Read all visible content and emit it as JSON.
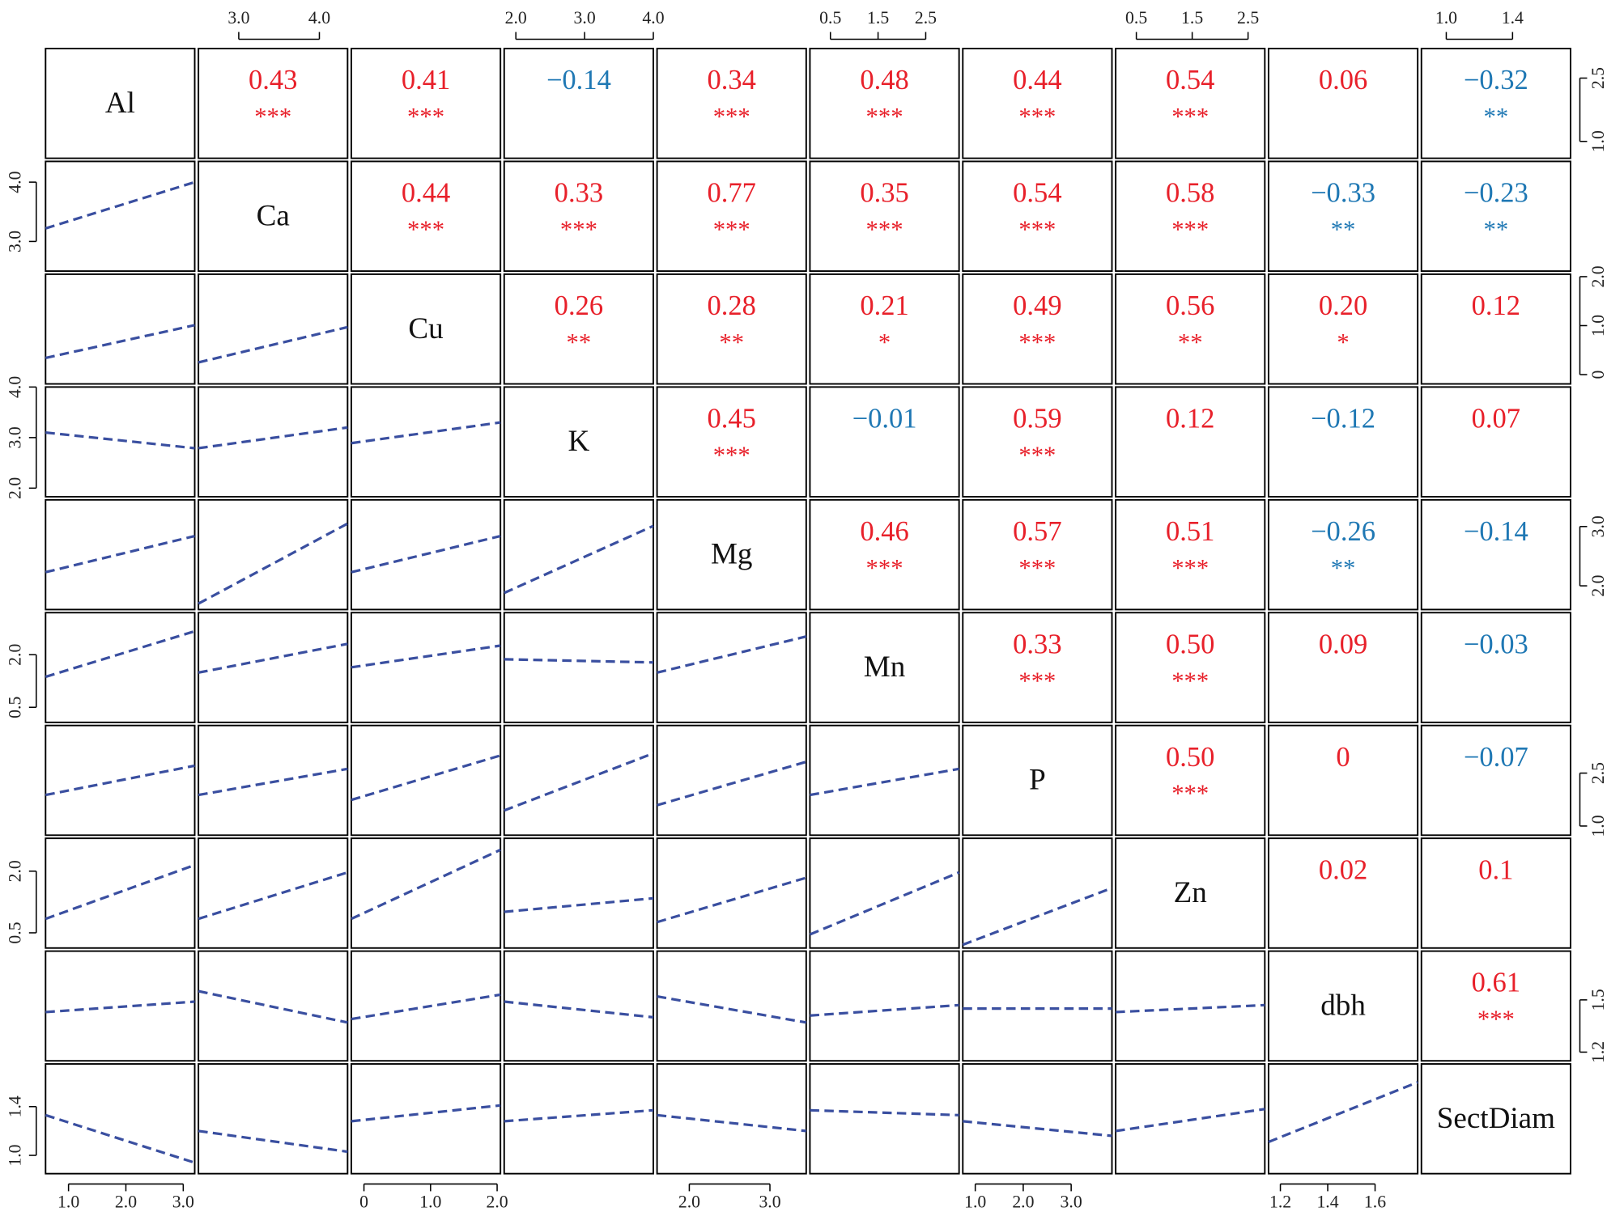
{
  "chart_data": {
    "type": "scatter-matrix",
    "pos_color": "#e8202a",
    "neg_color": "#1f78b4",
    "fit_color": "#3a4fa0",
    "variables": [
      {
        "name": "Al",
        "lim": [
          0.6,
          3.2
        ],
        "xticks": [
          {
            "value": 1,
            "label": "1.0"
          },
          {
            "value": 2,
            "label": "2.0"
          },
          {
            "value": 3,
            "label": "3.0"
          }
        ],
        "yticks": [
          {
            "value": 1,
            "label": "1.0"
          },
          {
            "value": 2.5,
            "label": "2.5"
          }
        ]
      },
      {
        "name": "Ca",
        "lim": [
          2.5,
          4.35
        ],
        "xticks": [
          {
            "value": 3,
            "label": "3.0"
          },
          {
            "value": 4,
            "label": "4.0"
          }
        ],
        "yticks": [
          {
            "value": 3,
            "label": "3.0"
          },
          {
            "value": 4,
            "label": "4.0"
          }
        ]
      },
      {
        "name": "Cu",
        "lim": [
          -0.19,
          2.05
        ],
        "xticks": [
          0,
          {
            "value": 1,
            "label": "1.0"
          },
          {
            "value": 2,
            "label": "2.0"
          }
        ],
        "yticks": [
          0,
          {
            "value": 1,
            "label": "1.0"
          },
          {
            "value": 2,
            "label": "2.0"
          }
        ]
      },
      {
        "name": "K",
        "lim": [
          1.83,
          4.0
        ],
        "xticks": [
          {
            "value": 2,
            "label": "2.0"
          },
          {
            "value": 3,
            "label": "3.0"
          },
          {
            "value": 4,
            "label": "4.0"
          }
        ],
        "yticks": [
          {
            "value": 2,
            "label": "2.0"
          },
          {
            "value": 3,
            "label": "3.0"
          },
          {
            "value": 4,
            "label": "4.0"
          }
        ]
      },
      {
        "name": "Mg",
        "lim": [
          1.6,
          3.45
        ],
        "xticks": [
          {
            "value": 2,
            "label": "2.0"
          },
          {
            "value": 3,
            "label": "3.0"
          }
        ],
        "yticks": [
          {
            "value": 2,
            "label": "2.0"
          },
          {
            "value": 3,
            "label": "3.0"
          }
        ]
      },
      {
        "name": "Mn",
        "lim": [
          0.07,
          3.2
        ],
        "xticks": [
          0.5,
          1.5,
          2.5
        ],
        "yticks": [
          0.5,
          {
            "value": 2,
            "label": "2.0"
          }
        ]
      },
      {
        "name": "P",
        "lim": [
          0.74,
          3.85
        ],
        "xticks": [
          {
            "value": 1,
            "label": "1.0"
          },
          {
            "value": 2,
            "label": "2.0"
          },
          {
            "value": 3,
            "label": "3.0"
          }
        ],
        "yticks": [
          {
            "value": 1,
            "label": "1.0"
          },
          2.5
        ]
      },
      {
        "name": "Zn",
        "lim": [
          0.13,
          2.8
        ],
        "xticks": [
          0.5,
          1.5,
          2.5
        ],
        "yticks": [
          0.5,
          {
            "value": 2,
            "label": "2.0"
          }
        ]
      },
      {
        "name": "dbh",
        "lim": [
          1.15,
          1.78
        ],
        "xticks": [
          1.2,
          1.4,
          1.6
        ],
        "yticks": [
          1.2,
          1.5
        ]
      },
      {
        "name": "SectDiam",
        "lim": [
          0.85,
          1.75
        ],
        "xticks": [
          {
            "value": 1,
            "label": "1.0"
          },
          1.4
        ],
        "yticks": [
          {
            "value": 1,
            "label": "1.0"
          },
          1.4
        ]
      }
    ],
    "correlations": [
      {
        "values": [
          0.43,
          0.41,
          -0.14,
          0.34,
          0.48,
          0.44,
          0.54,
          0.06,
          -0.32
        ],
        "value_labels": [
          "0.43",
          "0.41",
          "−0.14",
          "0.34",
          "0.48",
          "0.44",
          "0.54",
          "0.06",
          "−0.32"
        ],
        "stars": [
          "***",
          "***",
          null,
          "***",
          "***",
          "***",
          "***",
          null,
          "**"
        ]
      },
      {
        "values": [
          0.44,
          0.33,
          0.77,
          0.35,
          0.54,
          0.58,
          -0.33,
          -0.23
        ],
        "value_labels": [
          "0.44",
          "0.33",
          "0.77",
          "0.35",
          "0.54",
          "0.58",
          "−0.33",
          "−0.23"
        ],
        "stars": [
          "***",
          "***",
          "***",
          "***",
          "***",
          "***",
          "**",
          "**"
        ]
      },
      {
        "values": [
          0.26,
          0.28,
          0.21,
          0.49,
          0.56,
          0.2,
          0.12
        ],
        "value_labels": [
          "0.26",
          "0.28",
          "0.21",
          "0.49",
          "0.56",
          "0.20",
          "0.12"
        ],
        "stars": [
          "**",
          "**",
          "*",
          "***",
          "**",
          "*",
          null
        ]
      },
      {
        "values": [
          0.45,
          -0.01,
          0.59,
          0.12,
          -0.12,
          0.07
        ],
        "value_labels": [
          "0.45",
          "−0.01",
          "0.59",
          "0.12",
          "−0.12",
          "0.07"
        ],
        "stars": [
          "***",
          null,
          "***",
          null,
          null,
          null
        ]
      },
      {
        "values": [
          0.46,
          0.57,
          0.51,
          -0.26,
          -0.14
        ],
        "value_labels": [
          "0.46",
          "0.57",
          "0.51",
          "−0.26",
          "−0.14"
        ],
        "stars": [
          "***",
          "***",
          "***",
          "**",
          null
        ]
      },
      {
        "values": [
          0.33,
          0.5,
          0.09,
          -0.03
        ],
        "value_labels": [
          "0.33",
          "0.50",
          "0.09",
          "−0.03"
        ],
        "stars": [
          "***",
          "***",
          null,
          null
        ]
      },
      {
        "values": [
          0.5,
          0,
          -0.07
        ],
        "value_labels": [
          "0.50",
          "0",
          "−0.07"
        ],
        "stars": [
          "***",
          null,
          null
        ]
      },
      {
        "values": [
          0.02,
          0.1
        ],
        "value_labels": [
          "0.02",
          "0.1"
        ],
        "stars": [
          null,
          null
        ]
      },
      {
        "values": [
          0.61
        ],
        "value_labels": [
          "0.61"
        ],
        "stars": [
          "***"
        ]
      }
    ],
    "fits": [
      [
        [
          3.22,
          4.0
        ]
      ],
      [
        [
          0.34,
          1.01
        ],
        [
          0.25,
          0.97
        ]
      ],
      [
        [
          3.1,
          2.79
        ],
        [
          2.79,
          3.2
        ],
        [
          2.89,
          3.3
        ]
      ],
      [
        [
          2.23,
          2.84
        ],
        [
          1.7,
          3.05
        ],
        [
          2.23,
          2.84
        ],
        [
          1.88,
          3.01
        ]
      ],
      [
        [
          1.37,
          2.67
        ],
        [
          1.49,
          2.31
        ],
        [
          1.64,
          2.26
        ],
        [
          1.87,
          1.78
        ],
        [
          1.49,
          2.52
        ]
      ],
      [
        [
          1.88,
          2.71
        ],
        [
          1.88,
          2.62
        ],
        [
          1.74,
          3.0
        ],
        [
          1.44,
          3.06
        ],
        [
          1.59,
          2.82
        ],
        [
          1.88,
          2.62
        ]
      ],
      [
        [
          0.84,
          2.15
        ],
        [
          0.84,
          1.97
        ],
        [
          0.84,
          2.52
        ],
        [
          1.01,
          1.34
        ],
        [
          0.76,
          1.84
        ],
        [
          0.46,
          1.97
        ],
        [
          0.21,
          1.59
        ]
      ],
      [
        [
          1.43,
          1.49
        ],
        [
          1.55,
          1.37
        ],
        [
          1.39,
          1.53
        ],
        [
          1.49,
          1.4
        ],
        [
          1.52,
          1.37
        ],
        [
          1.41,
          1.47
        ],
        [
          1.45,
          1.45
        ],
        [
          1.43,
          1.47
        ]
      ],
      [
        [
          1.33,
          0.94
        ],
        [
          1.2,
          1.03
        ],
        [
          1.28,
          1.41
        ],
        [
          1.28,
          1.37
        ],
        [
          1.33,
          1.2
        ],
        [
          1.37,
          1.33
        ],
        [
          1.28,
          1.16
        ],
        [
          1.2,
          1.38
        ],
        [
          1.11,
          1.6
        ]
      ]
    ]
  }
}
